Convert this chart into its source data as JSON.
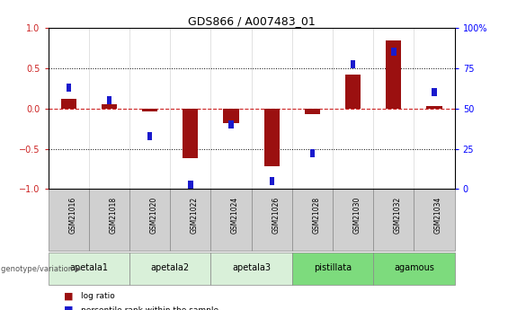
{
  "title": "GDS866 / A007483_01",
  "samples": [
    "GSM21016",
    "GSM21018",
    "GSM21020",
    "GSM21022",
    "GSM21024",
    "GSM21026",
    "GSM21028",
    "GSM21030",
    "GSM21032",
    "GSM21034"
  ],
  "log_ratio": [
    0.12,
    0.05,
    -0.04,
    -0.62,
    -0.18,
    -0.72,
    -0.07,
    0.42,
    0.85,
    0.03
  ],
  "percentile_rank_mapped": [
    0.26,
    0.1,
    -0.34,
    -0.94,
    -0.2,
    -0.9,
    -0.56,
    0.55,
    0.7,
    0.2
  ],
  "groups": [
    {
      "label": "apetala1",
      "count": 2,
      "color": "#d9f0d9"
    },
    {
      "label": "apetala2",
      "count": 2,
      "color": "#d9f0d9"
    },
    {
      "label": "apetala3",
      "count": 2,
      "color": "#d9f0d9"
    },
    {
      "label": "pistillata",
      "count": 2,
      "color": "#7ddb7d"
    },
    {
      "label": "agamous",
      "count": 2,
      "color": "#7ddb7d"
    }
  ],
  "ylim": [
    -1,
    1
  ],
  "yticks_left": [
    -1,
    -0.5,
    0,
    0.5,
    1
  ],
  "yticks_right": [
    0,
    25,
    50,
    75,
    100
  ],
  "bar_color": "#9b1010",
  "dot_color": "#1a1acd",
  "hline_color": "#cc2222",
  "bar_width": 0.38,
  "dot_size": 0.1,
  "sample_header_color": "#d0d0d0",
  "legend_items": [
    "log ratio",
    "percentile rank within the sample"
  ]
}
